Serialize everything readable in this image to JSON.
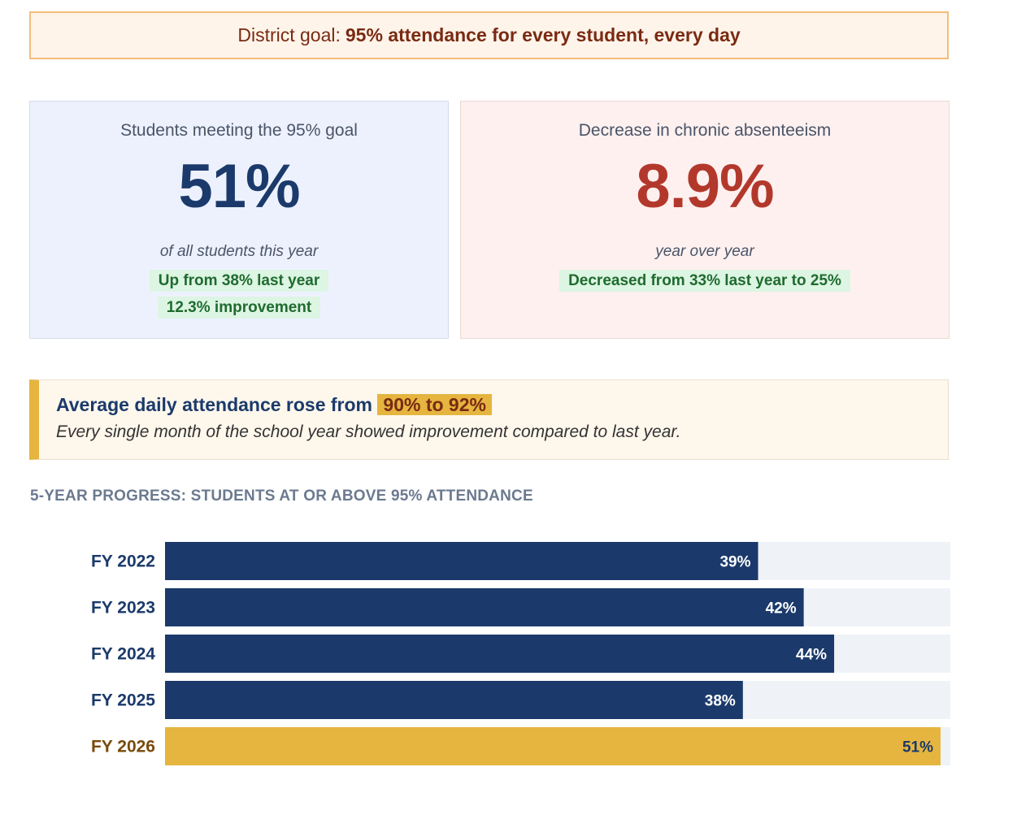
{
  "goal_banner": {
    "prefix": "District goal:",
    "highlight": "95% attendance for every student, every day"
  },
  "cards": [
    {
      "title": "Students meeting the 95% goal",
      "value": "51%",
      "subtitle": "of all students this year",
      "pills": [
        "Up from 38% last year",
        "12.3% improvement"
      ]
    },
    {
      "title": "Decrease in chronic absenteeism",
      "value": "8.9%",
      "subtitle": "year over year",
      "pills": [
        "Decreased from 33% last year to 25%"
      ]
    }
  ],
  "callout": {
    "lead": "Average daily attendance rose from",
    "highlight": "90% to 92%",
    "body": "Every single month of the school year showed improvement compared to last year."
  },
  "section_title": "5-YEAR PROGRESS: STUDENTS AT OR ABOVE 95% ATTENDANCE",
  "colors": {
    "navy": "#1b3a6b",
    "gold": "#e5b53f",
    "track": "#eff3f8",
    "current_label": "#7a4a0a"
  },
  "chart_data": {
    "type": "bar",
    "orientation": "horizontal",
    "title": "5-YEAR PROGRESS: STUDENTS AT OR ABOVE 95% ATTENDANCE",
    "categories": [
      "FY 2022",
      "FY 2023",
      "FY 2024",
      "FY 2025",
      "FY 2026"
    ],
    "values": [
      39,
      42,
      44,
      38,
      51
    ],
    "value_labels": [
      "39%",
      "42%",
      "44%",
      "38%",
      "51%"
    ],
    "highlight_category": "FY 2026",
    "xlim": [
      0,
      51
    ],
    "grid": false,
    "legend": "none"
  }
}
